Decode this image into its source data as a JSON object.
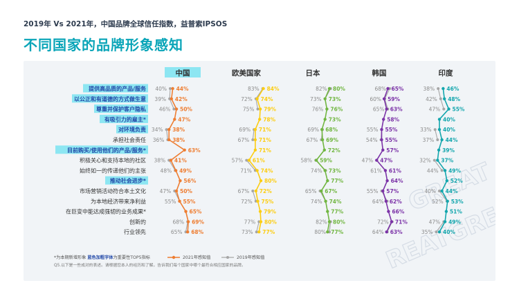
{
  "header": {
    "subtitle": "2019年 Vs 2021年，中国品牌全球信任指数，益普索IPSOS",
    "title": "不同国家的品牌形象感知"
  },
  "watermark": [
    "GREAT",
    "REATGREA"
  ],
  "footer": {
    "note_star": "*为本期新增形象",
    "note_bold": "蓝色加粗字体",
    "note_bold_rest": "为重要性TOP5指标",
    "legend_2021": "2021年感知值",
    "legend_2019": "2019年感知值",
    "question": "Q5.以下是一些成对的表述。请根据您本人的经历和了解，告诉我们每个国家中哪个最符合相应国家的品牌。"
  },
  "colors": {
    "中国": "#ee7d31",
    "欧美国家": "#fccd12",
    "日本": "#71b641",
    "韩国": "#7b32a7",
    "印度": "#13a6ad",
    "y2019": "#a6a6a6",
    "highlight": "#8de6f2",
    "bold_label": "#2349a8"
  },
  "chart_data": {
    "type": "line",
    "title": "不同国家的品牌形象感知",
    "orientation": "horizontal-dot-plot",
    "value_unit": "%",
    "attributes": [
      {
        "label": "提供高品质的产品/服务",
        "top5": true,
        "new": false
      },
      {
        "label": "以公正和有道德的方式做生意",
        "top5": true,
        "new": false
      },
      {
        "label": "尊重并保护客户隐私",
        "top5": true,
        "new": false
      },
      {
        "label": "有吸引力的雇主*",
        "top5": true,
        "new": true
      },
      {
        "label": "对环境负责",
        "top5": true,
        "new": false
      },
      {
        "label": "承担社会责任",
        "top5": false,
        "new": false
      },
      {
        "label": "目前购买/使用他们的产品/服务*",
        "top5": true,
        "new": true
      },
      {
        "label": "积极关心和支持本地的社区",
        "top5": false,
        "new": false
      },
      {
        "label": "始终如一的传递他们的主张",
        "top5": false,
        "new": false
      },
      {
        "label": "推动社会进步*",
        "top5": true,
        "new": true
      },
      {
        "label": "市场营销活动符合本土文化",
        "top5": false,
        "new": false
      },
      {
        "label": "为本地经济带来净利益",
        "top5": false,
        "new": false
      },
      {
        "label": "在巨变中能达成强韧的业务成果*",
        "top5": false,
        "new": true
      },
      {
        "label": "创新的",
        "top5": false,
        "new": false
      },
      {
        "label": "行业领先",
        "top5": false,
        "new": false
      }
    ],
    "series": [
      {
        "name": "中国",
        "highlighted": true,
        "values_2021": [
          44,
          42,
          50,
          47,
          38,
          38,
          63,
          41,
          49,
          56,
          50,
          55,
          65,
          69,
          68
        ],
        "values_2019": [
          40,
          39,
          46,
          null,
          34,
          36,
          null,
          38,
          48,
          null,
          47,
          55,
          null,
          68,
          65
        ]
      },
      {
        "name": "欧美国家",
        "values_2021": [
          84,
          74,
          79,
          78,
          71,
          71,
          71,
          61,
          74,
          80,
          72,
          75,
          79,
          80,
          77
        ],
        "values_2019": [
          83,
          72,
          75,
          null,
          69,
          67,
          null,
          57,
          71,
          null,
          67,
          72,
          null,
          77,
          73
        ]
      },
      {
        "name": "日本",
        "values_2021": [
          80,
          73,
          76,
          73,
          68,
          69,
          72,
          59,
          73,
          77,
          67,
          74,
          77,
          80,
          77
        ],
        "values_2019": [
          82,
          73,
          76,
          null,
          69,
          67,
          null,
          58,
          74,
          null,
          65,
          74,
          null,
          82,
          80
        ]
      },
      {
        "name": "韩国",
        "values_2021": [
          65,
          59,
          63,
          58,
          55,
          55,
          57,
          47,
          61,
          64,
          57,
          62,
          66,
          71,
          63
        ],
        "values_2019": [
          68,
          60,
          65,
          null,
          55,
          54,
          null,
          47,
          61,
          null,
          55,
          64,
          null,
          72,
          64
        ]
      },
      {
        "name": "印度",
        "values_2021": [
          46,
          48,
          55,
          40,
          40,
          44,
          39,
          37,
          49,
          52,
          44,
          53,
          51,
          49,
          40
        ],
        "values_2019": [
          38,
          42,
          47,
          null,
          33,
          37,
          null,
          32,
          44,
          null,
          40,
          52,
          null,
          47,
          35
        ]
      }
    ],
    "legend": [
      "2021年感知值",
      "2019年感知值"
    ]
  }
}
